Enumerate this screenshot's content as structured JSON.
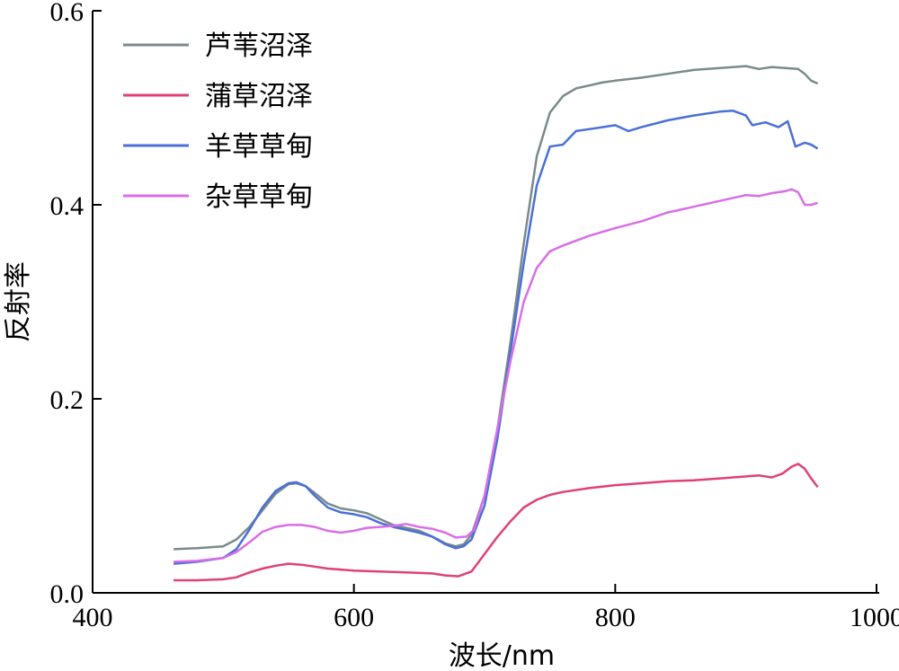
{
  "chart_data": {
    "type": "line",
    "xlabel": "波长/nm",
    "ylabel": "反射率",
    "xlim": [
      400,
      1000
    ],
    "ylim": [
      0,
      0.6
    ],
    "x_ticks": [
      "400",
      "600",
      "800",
      "1000"
    ],
    "y_ticks": [
      "0.0",
      "0.2",
      "0.4",
      "0.6"
    ],
    "grid": false,
    "legend_position": "top-left",
    "series": [
      {
        "name": "芦苇沼泽",
        "color": "#7a8a8a",
        "points": [
          [
            462,
            0.045
          ],
          [
            480,
            0.046
          ],
          [
            500,
            0.048
          ],
          [
            510,
            0.055
          ],
          [
            520,
            0.068
          ],
          [
            530,
            0.085
          ],
          [
            540,
            0.102
          ],
          [
            550,
            0.112
          ],
          [
            556,
            0.113
          ],
          [
            563,
            0.11
          ],
          [
            570,
            0.103
          ],
          [
            580,
            0.092
          ],
          [
            590,
            0.087
          ],
          [
            600,
            0.085
          ],
          [
            610,
            0.082
          ],
          [
            620,
            0.076
          ],
          [
            630,
            0.07
          ],
          [
            640,
            0.067
          ],
          [
            650,
            0.064
          ],
          [
            660,
            0.058
          ],
          [
            670,
            0.051
          ],
          [
            678,
            0.048
          ],
          [
            684,
            0.05
          ],
          [
            690,
            0.06
          ],
          [
            700,
            0.1
          ],
          [
            710,
            0.17
          ],
          [
            720,
            0.26
          ],
          [
            730,
            0.36
          ],
          [
            740,
            0.45
          ],
          [
            750,
            0.495
          ],
          [
            760,
            0.512
          ],
          [
            770,
            0.52
          ],
          [
            780,
            0.523
          ],
          [
            790,
            0.526
          ],
          [
            800,
            0.528
          ],
          [
            820,
            0.531
          ],
          [
            840,
            0.535
          ],
          [
            860,
            0.539
          ],
          [
            880,
            0.541
          ],
          [
            900,
            0.543
          ],
          [
            910,
            0.54
          ],
          [
            920,
            0.542
          ],
          [
            930,
            0.541
          ],
          [
            940,
            0.54
          ],
          [
            945,
            0.535
          ],
          [
            950,
            0.528
          ],
          [
            955,
            0.525
          ]
        ]
      },
      {
        "name": "蒲草沼泽",
        "color": "#e0407a",
        "points": [
          [
            462,
            0.013
          ],
          [
            480,
            0.013
          ],
          [
            500,
            0.014
          ],
          [
            510,
            0.016
          ],
          [
            520,
            0.021
          ],
          [
            530,
            0.025
          ],
          [
            540,
            0.028
          ],
          [
            550,
            0.03
          ],
          [
            560,
            0.029
          ],
          [
            570,
            0.027
          ],
          [
            580,
            0.025
          ],
          [
            600,
            0.023
          ],
          [
            620,
            0.022
          ],
          [
            640,
            0.021
          ],
          [
            660,
            0.02
          ],
          [
            670,
            0.018
          ],
          [
            680,
            0.017
          ],
          [
            690,
            0.022
          ],
          [
            700,
            0.04
          ],
          [
            710,
            0.058
          ],
          [
            720,
            0.074
          ],
          [
            730,
            0.088
          ],
          [
            740,
            0.096
          ],
          [
            750,
            0.101
          ],
          [
            760,
            0.104
          ],
          [
            780,
            0.108
          ],
          [
            800,
            0.111
          ],
          [
            820,
            0.113
          ],
          [
            840,
            0.115
          ],
          [
            860,
            0.116
          ],
          [
            880,
            0.118
          ],
          [
            900,
            0.12
          ],
          [
            910,
            0.121
          ],
          [
            920,
            0.119
          ],
          [
            928,
            0.123
          ],
          [
            935,
            0.13
          ],
          [
            940,
            0.133
          ],
          [
            945,
            0.128
          ],
          [
            950,
            0.118
          ],
          [
            955,
            0.109
          ]
        ]
      },
      {
        "name": "羊草草甸",
        "color": "#4a6fd8",
        "points": [
          [
            462,
            0.03
          ],
          [
            480,
            0.032
          ],
          [
            500,
            0.036
          ],
          [
            510,
            0.045
          ],
          [
            520,
            0.065
          ],
          [
            530,
            0.088
          ],
          [
            540,
            0.105
          ],
          [
            550,
            0.113
          ],
          [
            556,
            0.114
          ],
          [
            563,
            0.11
          ],
          [
            570,
            0.1
          ],
          [
            580,
            0.088
          ],
          [
            590,
            0.083
          ],
          [
            600,
            0.081
          ],
          [
            610,
            0.078
          ],
          [
            620,
            0.072
          ],
          [
            630,
            0.068
          ],
          [
            640,
            0.065
          ],
          [
            650,
            0.062
          ],
          [
            660,
            0.058
          ],
          [
            670,
            0.05
          ],
          [
            678,
            0.046
          ],
          [
            684,
            0.048
          ],
          [
            690,
            0.055
          ],
          [
            700,
            0.09
          ],
          [
            710,
            0.16
          ],
          [
            720,
            0.25
          ],
          [
            730,
            0.34
          ],
          [
            740,
            0.42
          ],
          [
            750,
            0.46
          ],
          [
            760,
            0.462
          ],
          [
            770,
            0.476
          ],
          [
            780,
            0.478
          ],
          [
            790,
            0.48
          ],
          [
            800,
            0.482
          ],
          [
            810,
            0.476
          ],
          [
            820,
            0.48
          ],
          [
            840,
            0.487
          ],
          [
            860,
            0.492
          ],
          [
            880,
            0.496
          ],
          [
            890,
            0.497
          ],
          [
            900,
            0.492
          ],
          [
            905,
            0.482
          ],
          [
            915,
            0.485
          ],
          [
            925,
            0.48
          ],
          [
            932,
            0.486
          ],
          [
            938,
            0.46
          ],
          [
            945,
            0.464
          ],
          [
            950,
            0.462
          ],
          [
            955,
            0.458
          ]
        ]
      },
      {
        "name": "杂草草甸",
        "color": "#d86ee8",
        "points": [
          [
            462,
            0.032
          ],
          [
            480,
            0.033
          ],
          [
            500,
            0.036
          ],
          [
            510,
            0.042
          ],
          [
            520,
            0.052
          ],
          [
            530,
            0.063
          ],
          [
            540,
            0.068
          ],
          [
            550,
            0.07
          ],
          [
            560,
            0.07
          ],
          [
            570,
            0.068
          ],
          [
            580,
            0.064
          ],
          [
            590,
            0.062
          ],
          [
            600,
            0.064
          ],
          [
            610,
            0.067
          ],
          [
            620,
            0.068
          ],
          [
            630,
            0.069
          ],
          [
            640,
            0.071
          ],
          [
            650,
            0.068
          ],
          [
            660,
            0.066
          ],
          [
            670,
            0.062
          ],
          [
            678,
            0.057
          ],
          [
            686,
            0.058
          ],
          [
            692,
            0.065
          ],
          [
            700,
            0.1
          ],
          [
            710,
            0.17
          ],
          [
            720,
            0.24
          ],
          [
            730,
            0.3
          ],
          [
            740,
            0.335
          ],
          [
            750,
            0.352
          ],
          [
            760,
            0.358
          ],
          [
            780,
            0.368
          ],
          [
            800,
            0.376
          ],
          [
            820,
            0.383
          ],
          [
            840,
            0.392
          ],
          [
            860,
            0.398
          ],
          [
            880,
            0.404
          ],
          [
            900,
            0.41
          ],
          [
            910,
            0.409
          ],
          [
            920,
            0.412
          ],
          [
            930,
            0.414
          ],
          [
            935,
            0.416
          ],
          [
            940,
            0.413
          ],
          [
            945,
            0.4
          ],
          [
            950,
            0.4
          ],
          [
            955,
            0.402
          ]
        ]
      }
    ]
  }
}
